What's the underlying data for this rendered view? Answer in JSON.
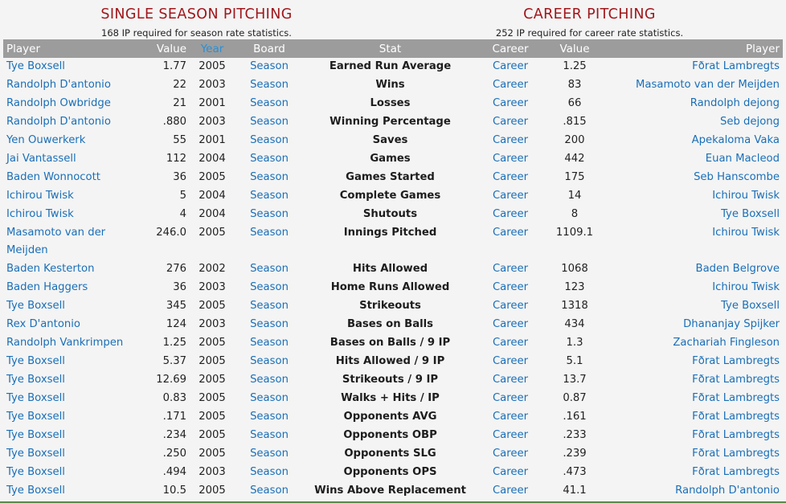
{
  "single": {
    "title": "SINGLE SEASON PITCHING",
    "note": "168 IP required for season rate statistics."
  },
  "career": {
    "title": "CAREER PITCHING",
    "note": "252 IP required for career rate statistics."
  },
  "columns": {
    "player": "Player",
    "value": "Value",
    "year": "Year",
    "board": "Board",
    "stat": "Stat",
    "career_board": "Career",
    "career_value": "Value",
    "career_player": "Player"
  },
  "rows": [
    {
      "sp": "Tye Boxsell",
      "sv": "1.77",
      "yr": "2005",
      "sb": "Season",
      "stat": "Earned Run Average",
      "cb": "Career",
      "cv": "1.25",
      "cp": "Fðrat Lambregts"
    },
    {
      "sp": "Randolph D'antonio",
      "sv": "22",
      "yr": "2003",
      "sb": "Season",
      "stat": "Wins",
      "cb": "Career",
      "cv": "83",
      "cp": "Masamoto van der Meijden"
    },
    {
      "sp": "Randolph Owbridge",
      "sv": "21",
      "yr": "2001",
      "sb": "Season",
      "stat": "Losses",
      "cb": "Career",
      "cv": "66",
      "cp": "Randolph dejong"
    },
    {
      "sp": "Randolph D'antonio",
      "sv": ".880",
      "yr": "2003",
      "sb": "Season",
      "stat": "Winning Percentage",
      "cb": "Career",
      "cv": ".815",
      "cp": "Seb dejong"
    },
    {
      "sp": "Yen Ouwerkerk",
      "sv": "55",
      "yr": "2001",
      "sb": "Season",
      "stat": "Saves",
      "cb": "Career",
      "cv": "200",
      "cp": "Apekaloma Vaka"
    },
    {
      "sp": "Jai Vantassell",
      "sv": "112",
      "yr": "2004",
      "sb": "Season",
      "stat": "Games",
      "cb": "Career",
      "cv": "442",
      "cp": "Euan Macleod"
    },
    {
      "sp": "Baden Wonnocott",
      "sv": "36",
      "yr": "2005",
      "sb": "Season",
      "stat": "Games Started",
      "cb": "Career",
      "cv": "175",
      "cp": "Seb Hanscombe"
    },
    {
      "sp": "Ichirou Twisk",
      "sv": "5",
      "yr": "2004",
      "sb": "Season",
      "stat": "Complete Games",
      "cb": "Career",
      "cv": "14",
      "cp": "Ichirou Twisk"
    },
    {
      "sp": "Ichirou Twisk",
      "sv": "4",
      "yr": "2004",
      "sb": "Season",
      "stat": "Shutouts",
      "cb": "Career",
      "cv": "8",
      "cp": "Tye Boxsell"
    },
    {
      "sp": "Masamoto van der Meijden",
      "sv": "246.0",
      "yr": "2005",
      "sb": "Season",
      "stat": "Innings Pitched",
      "cb": "Career",
      "cv": "1109.1",
      "cp": "Ichirou Twisk"
    },
    {
      "sp": "Baden Kesterton",
      "sv": "276",
      "yr": "2002",
      "sb": "Season",
      "stat": "Hits Allowed",
      "cb": "Career",
      "cv": "1068",
      "cp": "Baden Belgrove"
    },
    {
      "sp": "Baden Haggers",
      "sv": "36",
      "yr": "2003",
      "sb": "Season",
      "stat": "Home Runs Allowed",
      "cb": "Career",
      "cv": "123",
      "cp": "Ichirou Twisk"
    },
    {
      "sp": "Tye Boxsell",
      "sv": "345",
      "yr": "2005",
      "sb": "Season",
      "stat": "Strikeouts",
      "cb": "Career",
      "cv": "1318",
      "cp": "Tye Boxsell"
    },
    {
      "sp": "Rex D'antonio",
      "sv": "124",
      "yr": "2003",
      "sb": "Season",
      "stat": "Bases on Balls",
      "cb": "Career",
      "cv": "434",
      "cp": "Dhananjay Spijker"
    },
    {
      "sp": "Randolph Vankrimpen",
      "sv": "1.25",
      "yr": "2005",
      "sb": "Season",
      "stat": "Bases on Balls / 9 IP",
      "cb": "Career",
      "cv": "1.3",
      "cp": "Zachariah Fingleson"
    },
    {
      "sp": "Tye Boxsell",
      "sv": "5.37",
      "yr": "2005",
      "sb": "Season",
      "stat": "Hits Allowed / 9 IP",
      "cb": "Career",
      "cv": "5.1",
      "cp": "Fðrat Lambregts"
    },
    {
      "sp": "Tye Boxsell",
      "sv": "12.69",
      "yr": "2005",
      "sb": "Season",
      "stat": "Strikeouts / 9 IP",
      "cb": "Career",
      "cv": "13.7",
      "cp": "Fðrat Lambregts"
    },
    {
      "sp": "Tye Boxsell",
      "sv": "0.83",
      "yr": "2005",
      "sb": "Season",
      "stat": "Walks + Hits / IP",
      "cb": "Career",
      "cv": "0.87",
      "cp": "Fðrat Lambregts"
    },
    {
      "sp": "Tye Boxsell",
      "sv": ".171",
      "yr": "2005",
      "sb": "Season",
      "stat": "Opponents AVG",
      "cb": "Career",
      "cv": ".161",
      "cp": "Fðrat Lambregts"
    },
    {
      "sp": "Tye Boxsell",
      "sv": ".234",
      "yr": "2005",
      "sb": "Season",
      "stat": "Opponents OBP",
      "cb": "Career",
      "cv": ".233",
      "cp": "Fðrat Lambregts"
    },
    {
      "sp": "Tye Boxsell",
      "sv": ".250",
      "yr": "2005",
      "sb": "Season",
      "stat": "Opponents SLG",
      "cb": "Career",
      "cv": ".239",
      "cp": "Fðrat Lambregts"
    },
    {
      "sp": "Tye Boxsell",
      "sv": ".494",
      "yr": "2003",
      "sb": "Season",
      "stat": "Opponents OPS",
      "cb": "Career",
      "cv": ".473",
      "cp": "Fðrat Lambregts"
    },
    {
      "sp": "Tye Boxsell",
      "sv": "10.5",
      "yr": "2005",
      "sb": "Season",
      "stat": "Wins Above Replacement",
      "cb": "Career",
      "cv": "41.1",
      "cp": "Randolph D'antonio"
    }
  ]
}
